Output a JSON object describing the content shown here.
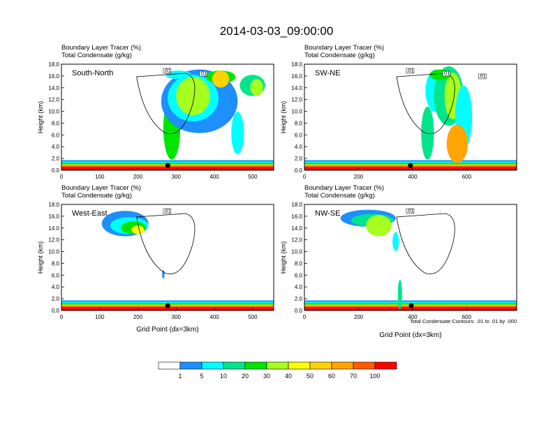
{
  "page": {
    "title": "2014-03-03_09:00:00"
  },
  "colorbar": {
    "levels": [
      "1",
      "5",
      "10",
      "20",
      "30",
      "40",
      "50",
      "60",
      "70",
      "100"
    ],
    "colors": [
      "#ffffff",
      "#1e8fff",
      "#00ffff",
      "#00e58c",
      "#00e600",
      "#a6ff1f",
      "#ffff00",
      "#ffd200",
      "#ffa500",
      "#ff5a00",
      "#ff0000"
    ]
  },
  "contour_note": "Total Condensate Contours: .01 to .01 by .000",
  "chart_data": [
    {
      "type": "heatmap",
      "name": "South-North",
      "header": [
        "Boundary Layer Tracer   (%)",
        "Total Condensate   (g/kg)"
      ],
      "xlabel": "",
      "ylabel": "Height (km)",
      "xlim": [
        0,
        555
      ],
      "ylim": [
        0,
        18
      ],
      "x_ticks": [
        "0",
        "100",
        "200",
        "300",
        "400",
        "500"
      ],
      "x_tick_values": [
        0,
        100,
        200,
        300,
        400,
        500
      ],
      "y_ticks": [
        "0.0",
        "2.0",
        "4.0",
        "6.0",
        "8.0",
        "10.0",
        "12.0",
        "14.0",
        "16.0",
        "18.0"
      ],
      "contour_labels": [
        ".01",
        ".01"
      ],
      "marker_x": 278
    },
    {
      "type": "heatmap",
      "name": "SW-NE",
      "header": [
        "Boundary Layer Tracer   (%)",
        "Total Condensate   (g/kg)"
      ],
      "xlabel": "",
      "ylabel": "Height (km)",
      "xlim": [
        0,
        785
      ],
      "ylim": [
        0,
        18
      ],
      "x_ticks": [
        "0",
        "200",
        "400",
        "600"
      ],
      "x_tick_values": [
        0,
        200,
        400,
        600
      ],
      "y_ticks": [
        "0.0",
        "2.0",
        "4.0",
        "6.0",
        "8.0",
        "10.0",
        "12.0",
        "14.0",
        "16.0",
        "18.0"
      ],
      "contour_labels": [
        ".01",
        ".01",
        ".01"
      ],
      "marker_x": 392
    },
    {
      "type": "heatmap",
      "name": "West-East",
      "header": [
        "Boundary Layer Tracer   (%)",
        "Total Condensate   (g/kg)"
      ],
      "xlabel": "Grid Point (dx=3km)",
      "ylabel": "Height (km)",
      "xlim": [
        0,
        555
      ],
      "ylim": [
        0,
        18
      ],
      "x_ticks": [
        "0",
        "100",
        "200",
        "300",
        "400",
        "500"
      ],
      "x_tick_values": [
        0,
        100,
        200,
        300,
        400,
        500
      ],
      "y_ticks": [
        "0.0",
        "2.0",
        "4.0",
        "6.0",
        "8.0",
        "10.0",
        "12.0",
        "14.0",
        "16.0",
        "18.0"
      ],
      "contour_labels": [
        ".01"
      ],
      "marker_x": 278
    },
    {
      "type": "heatmap",
      "name": "NW-SE",
      "header": [
        "Boundary Layer Tracer   (%)",
        "Total Condensate   (g/kg)"
      ],
      "xlabel": "Grid Point (dx=3km)",
      "ylabel": "Height (km)",
      "xlim": [
        0,
        785
      ],
      "ylim": [
        0,
        18
      ],
      "x_ticks": [
        "0",
        "200",
        "400",
        "600"
      ],
      "x_tick_values": [
        0,
        200,
        400,
        600
      ],
      "y_ticks": [
        "0.0",
        "2.0",
        "4.0",
        "6.0",
        "8.0",
        "10.0",
        "12.0",
        "14.0",
        "16.0",
        "18.0"
      ],
      "contour_labels": [
        ".01"
      ],
      "marker_x": 395
    }
  ]
}
